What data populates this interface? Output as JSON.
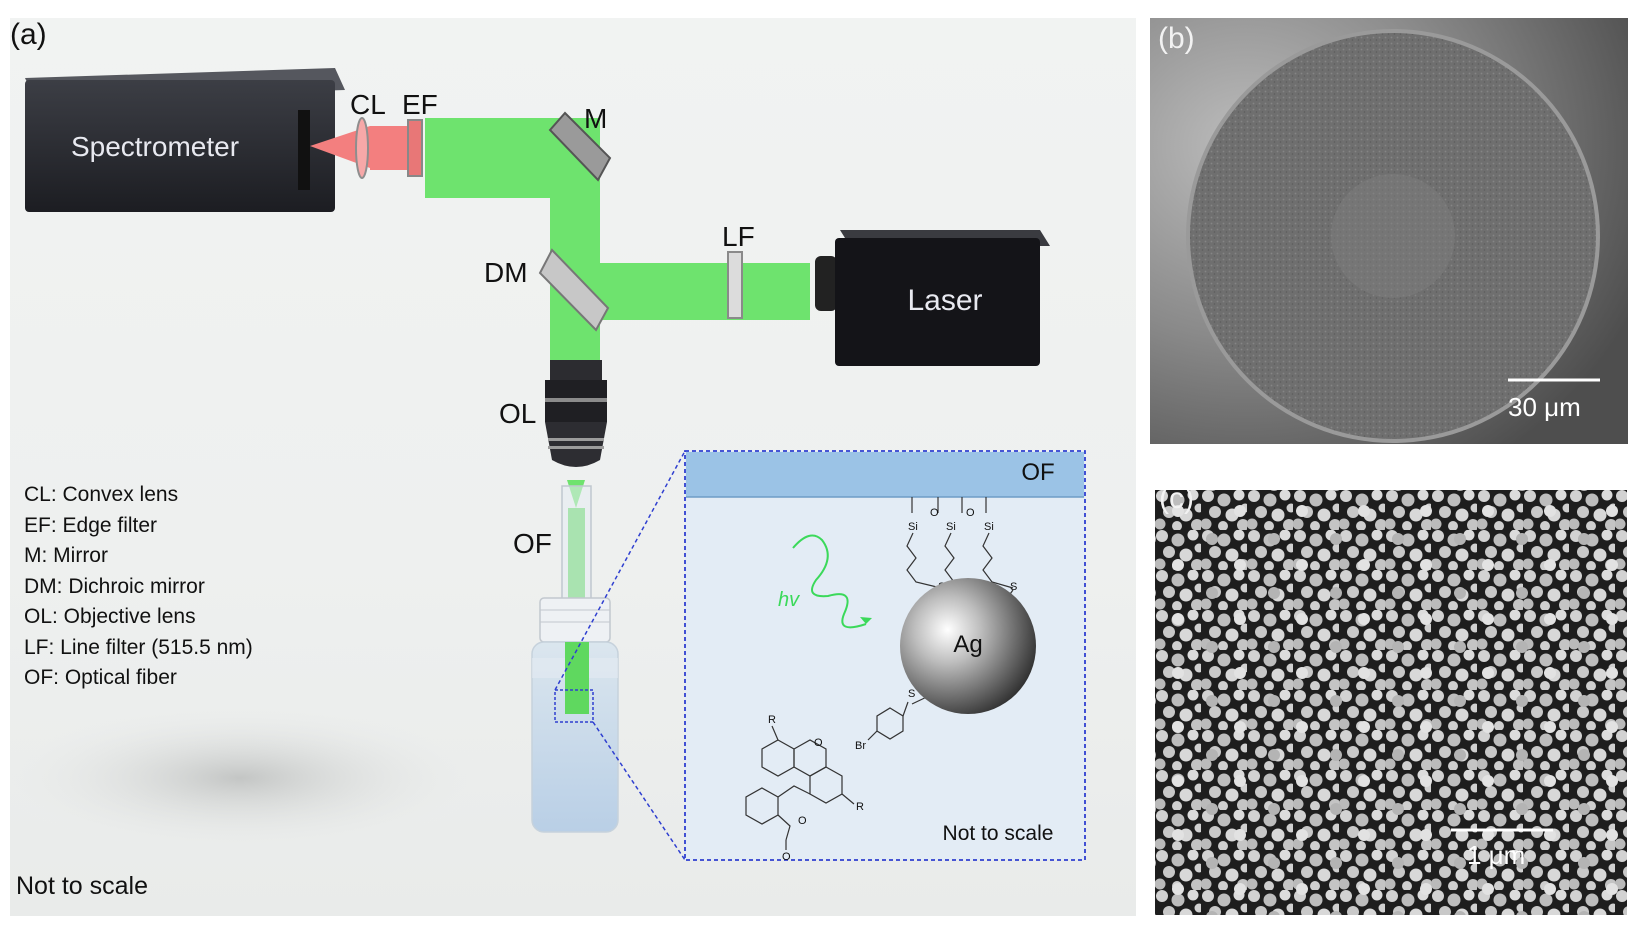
{
  "panel_a": {
    "label": "(a)",
    "spectrometer": "Spectrometer",
    "laser": "Laser",
    "components": {
      "cl": "CL",
      "ef": "EF",
      "m": "M",
      "lf": "LF",
      "dm": "DM",
      "ol": "OL",
      "of": "OF"
    },
    "legend": [
      "CL: Convex lens",
      "EF: Edge filter",
      "M: Mirror",
      "DM: Dichroic mirror",
      "OL: Objective lens",
      "LF: Line filter (515.5 nm)",
      "OF: Optical fiber"
    ],
    "not_to_scale": "Not to scale",
    "inset": {
      "fiber_label": "OF",
      "hv": "hv",
      "particle": "Ag",
      "not_to_scale": "Not to scale",
      "atoms": {
        "si": "Si",
        "o": "O",
        "s": "S",
        "br": "Br",
        "r": "R"
      }
    },
    "colors": {
      "beam": "#6ee36e",
      "spectro_beam": "#f37f7f",
      "inset_border": "#2f3fd0",
      "inset_fiber": "#9bc3e6"
    }
  },
  "panel_b": {
    "label": "(b)",
    "scale_bar": "30 μm"
  },
  "panel_c": {
    "label": "(c)",
    "scale_bar": "1 μm"
  }
}
